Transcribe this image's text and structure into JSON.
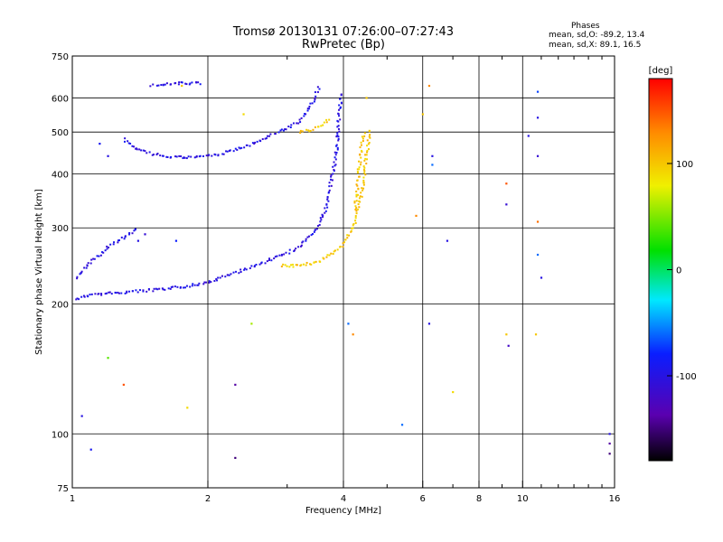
{
  "header": {
    "title": "Tromsø 20130131 07:26:00–07:27:43",
    "subtitle": "RwPretec (Bp)"
  },
  "stats": {
    "heading": "Phases",
    "line_o": "mean, sd,O: -89.2, 13.4",
    "line_x": "mean, sd,X:  89.1, 16.5"
  },
  "colors": {
    "frame": "#000000",
    "o_trace": "#2a3cff",
    "x_trace": "#e8e800"
  },
  "chart_data": {
    "type": "scatter",
    "xlabel": "Frequency [MHz]",
    "ylabel": "Stationary phase Virtual Height [km]",
    "xscale": "log",
    "yscale": "log",
    "xlim": [
      1,
      16
    ],
    "ylim": [
      75,
      750
    ],
    "x_ticks": [
      1,
      2,
      4,
      6,
      8,
      10,
      16
    ],
    "x_tick_labels": [
      "1",
      "2",
      "4",
      "6",
      "8",
      "10",
      "16"
    ],
    "x_minor_ticks": [
      3,
      5,
      7,
      9,
      11,
      12,
      13,
      14,
      15
    ],
    "y_ticks": [
      75,
      100,
      200,
      300,
      400,
      500,
      600,
      750
    ],
    "y_tick_labels": [
      "75",
      "100",
      "200",
      "300",
      "400",
      "500",
      "600",
      "750"
    ],
    "grid": true,
    "colorbar": {
      "label": "[deg]",
      "min": -180,
      "max": 180,
      "ticks": [
        -100,
        0,
        100
      ],
      "tick_labels": [
        "-100",
        "0",
        "100"
      ]
    },
    "series": [
      {
        "mode": "O",
        "phase_deg": -100,
        "traces": [
          [
            [
              1.02,
              205
            ],
            [
              1.1,
              210
            ],
            [
              1.25,
              212
            ],
            [
              1.4,
              214
            ],
            [
              1.6,
              216
            ],
            [
              1.8,
              220
            ],
            [
              2.0,
              224
            ],
            [
              2.2,
              232
            ],
            [
              2.4,
              240
            ],
            [
              2.6,
              247
            ],
            [
              2.8,
              255
            ],
            [
              3.0,
              262
            ],
            [
              3.2,
              272
            ],
            [
              3.4,
              288
            ],
            [
              3.5,
              300
            ],
            [
              3.6,
              320
            ],
            [
              3.7,
              345
            ],
            [
              3.75,
              380
            ],
            [
              3.8,
              410
            ],
            [
              3.85,
              440
            ]
          ],
          [
            [
              1.3,
              480
            ],
            [
              1.4,
              455
            ],
            [
              1.5,
              445
            ],
            [
              1.7,
              437
            ],
            [
              1.9,
              437
            ],
            [
              2.1,
              443
            ],
            [
              2.3,
              455
            ],
            [
              2.6,
              475
            ],
            [
              2.8,
              495
            ],
            [
              3.0,
              510
            ],
            [
              3.2,
              530
            ],
            [
              3.4,
              580
            ],
            [
              3.5,
              620
            ],
            [
              3.55,
              640
            ]
          ],
          [
            [
              3.85,
              440
            ],
            [
              3.88,
              480
            ],
            [
              3.9,
              520
            ],
            [
              3.92,
              560
            ],
            [
              3.95,
              600
            ],
            [
              3.95,
              620
            ]
          ],
          [
            [
              1.02,
              230
            ],
            [
              1.1,
              250
            ],
            [
              1.2,
              270
            ],
            [
              1.3,
              285
            ],
            [
              1.4,
              300
            ]
          ],
          [
            [
              1.5,
              640
            ],
            [
              1.6,
              645
            ],
            [
              1.7,
              650
            ],
            [
              1.8,
              645
            ],
            [
              1.95,
              650
            ]
          ]
        ]
      },
      {
        "mode": "X",
        "phase_deg": 100,
        "traces": [
          [
            [
              2.9,
              245
            ],
            [
              3.2,
              245
            ],
            [
              3.5,
              250
            ],
            [
              3.8,
              262
            ],
            [
              4.0,
              275
            ],
            [
              4.2,
              300
            ],
            [
              4.3,
              330
            ],
            [
              4.4,
              360
            ],
            [
              4.45,
              400
            ],
            [
              4.5,
              440
            ],
            [
              4.55,
              480
            ],
            [
              4.6,
              510
            ]
          ],
          [
            [
              3.2,
              500
            ],
            [
              3.4,
              505
            ],
            [
              3.6,
              520
            ],
            [
              3.75,
              540
            ]
          ],
          [
            [
              4.25,
              330
            ],
            [
              4.3,
              380
            ],
            [
              4.35,
              430
            ],
            [
              4.4,
              470
            ],
            [
              4.45,
              500
            ]
          ]
        ]
      },
      {
        "mode": "scattered",
        "points": [
          [
            1.05,
            110,
            -100
          ],
          [
            1.1,
            92,
            -90
          ],
          [
            1.2,
            150,
            40
          ],
          [
            1.3,
            130,
            150
          ],
          [
            1.8,
            115,
            90
          ],
          [
            1.75,
            640,
            100
          ],
          [
            2.3,
            130,
            -140
          ],
          [
            2.3,
            88,
            -150
          ],
          [
            2.4,
            550,
            90
          ],
          [
            2.5,
            180,
            60
          ],
          [
            5.4,
            105,
            -60
          ],
          [
            6.2,
            180,
            -100
          ],
          [
            6.3,
            440,
            -100
          ],
          [
            6.3,
            420,
            -60
          ],
          [
            6.2,
            640,
            130
          ],
          [
            6.8,
            280,
            -100
          ],
          [
            7.0,
            125,
            90
          ],
          [
            9.2,
            170,
            100
          ],
          [
            9.3,
            160,
            -120
          ],
          [
            9.2,
            340,
            -110
          ],
          [
            9.2,
            380,
            150
          ],
          [
            10.3,
            490,
            -100
          ],
          [
            10.8,
            440,
            -110
          ],
          [
            10.8,
            540,
            -100
          ],
          [
            10.8,
            620,
            -70
          ],
          [
            11.0,
            230,
            -100
          ],
          [
            10.8,
            260,
            -60
          ],
          [
            10.8,
            310,
            140
          ],
          [
            10.7,
            170,
            100
          ],
          [
            15.6,
            100,
            -100
          ],
          [
            15.6,
            95,
            -140
          ],
          [
            15.6,
            90,
            -150
          ],
          [
            4.2,
            170,
            130
          ],
          [
            4.1,
            180,
            -60
          ],
          [
            5.8,
            320,
            130
          ],
          [
            6.0,
            550,
            100
          ],
          [
            4.5,
            600,
            100
          ],
          [
            1.45,
            290,
            -110
          ],
          [
            1.4,
            280,
            -100
          ],
          [
            1.7,
            280,
            -80
          ],
          [
            1.2,
            440,
            -100
          ],
          [
            1.15,
            470,
            -90
          ]
        ]
      }
    ]
  }
}
